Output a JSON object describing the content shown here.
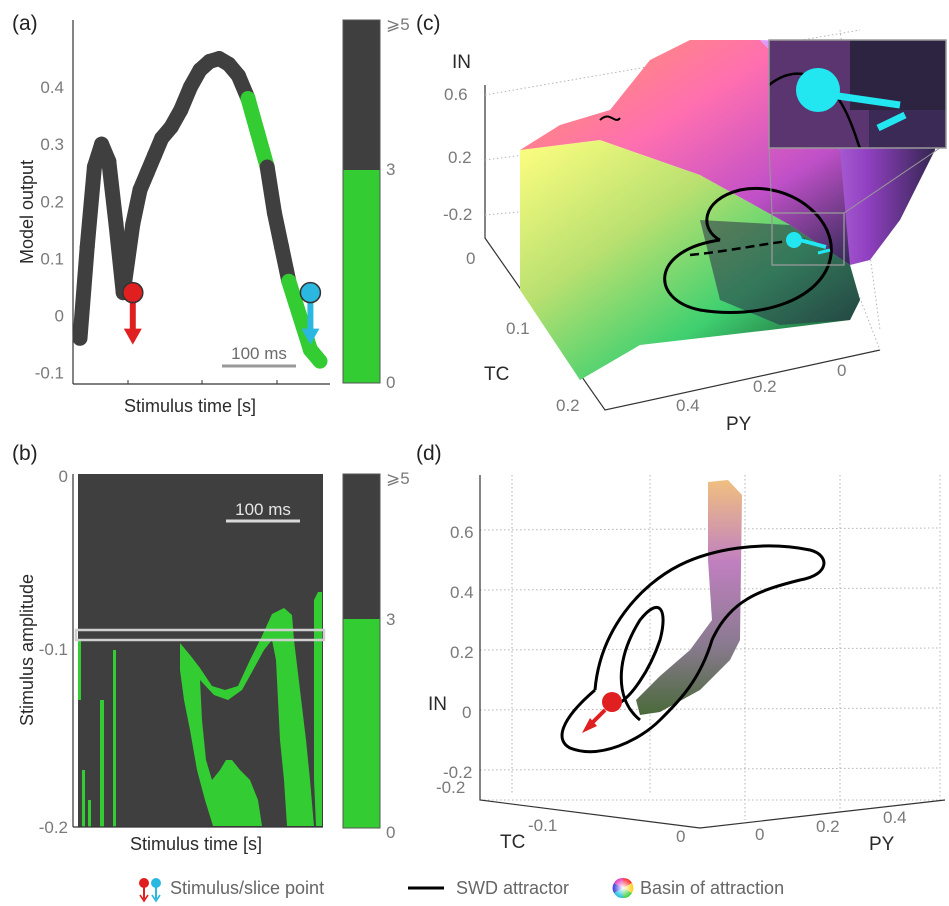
{
  "colors": {
    "dark": "#3f3f3f",
    "green": "#33cc33",
    "red": "#e02020",
    "cyan": "#2ab8e0",
    "black": "#000000"
  },
  "panel_labels": {
    "a": "(a)",
    "b": "(b)",
    "c": "(c)",
    "d": "(d)"
  },
  "colorbar": {
    "ticks": [
      "⩾5",
      "3",
      "0"
    ]
  },
  "scale_bar": {
    "label": "100 ms"
  },
  "legend": {
    "items": [
      {
        "icon": "stimulus-arrows-icon",
        "label": "Stimulus/slice point"
      },
      {
        "icon": "black-line-icon",
        "label": "SWD attractor"
      },
      {
        "icon": "color-wheel-icon",
        "label": "Basin of attraction"
      }
    ]
  },
  "chart_data": [
    {
      "panel": "a",
      "type": "line",
      "xlabel": "Stimulus time [s]",
      "ylabel": "Model output",
      "ylim": [
        -0.12,
        0.5
      ],
      "yticks": [
        "0.4",
        "0.3",
        "0.2",
        "0.1",
        "0",
        "-0.1"
      ],
      "series": [
        {
          "x": [
            0,
            0.03,
            0.06,
            0.09,
            0.12,
            0.15,
            0.18,
            0.22,
            0.25,
            0.28,
            0.31,
            0.34,
            0.38,
            0.42,
            0.46,
            0.5,
            0.54,
            0.58,
            0.62,
            0.66,
            0.7,
            0.74,
            0.78,
            0.81,
            0.84,
            0.87,
            0.9,
            0.93,
            0.96,
            1.0
          ],
          "y": [
            -0.04,
            0.12,
            0.26,
            0.3,
            0.27,
            0.16,
            0.04,
            0.16,
            0.22,
            0.25,
            0.28,
            0.31,
            0.33,
            0.36,
            0.4,
            0.43,
            0.445,
            0.45,
            0.44,
            0.42,
            0.38,
            0.32,
            0.26,
            0.18,
            0.12,
            0.06,
            0.02,
            -0.02,
            -0.06,
            -0.08
          ],
          "color_index": [
            5,
            5,
            5,
            5,
            5,
            5,
            5,
            5,
            5,
            5,
            5,
            5,
            5,
            5,
            5,
            5,
            5,
            5,
            5,
            5,
            3,
            3,
            5,
            5,
            5,
            2,
            2,
            2,
            2,
            2
          ]
        }
      ],
      "markers": [
        {
          "x": 0.22,
          "y": 0.04,
          "color": "red",
          "arrow": "down"
        },
        {
          "x": 0.96,
          "y": 0.04,
          "color": "cyan",
          "arrow": "down"
        }
      ]
    },
    {
      "panel": "b",
      "type": "heatmap",
      "xlabel": "Stimulus time [s]",
      "ylabel": "Stimulus amplitude",
      "yticks": [
        "0",
        "-0.1",
        "-0.2"
      ],
      "ylim": [
        -0.2,
        0
      ],
      "slice_amplitude": -0.087,
      "legend_values": [
        "⩾5",
        "3",
        "0"
      ]
    },
    {
      "panel": "c",
      "type": "scatter",
      "axes3d": {
        "xlabel": "PY",
        "ylabel": "TC",
        "zlabel": "IN",
        "xticks": [
          "0.4",
          "0.2",
          "0"
        ],
        "yticks": [
          "0",
          "0.1",
          "0.2"
        ],
        "zticks": [
          "0.6",
          "0.2",
          "-0.2"
        ]
      }
    },
    {
      "panel": "d",
      "type": "scatter",
      "axes3d": {
        "xlabel": "PY",
        "ylabel": "TC",
        "zlabel": "IN",
        "xticks": [
          "0",
          "0.2",
          "0.4"
        ],
        "yticks": [
          "-0.1",
          "0"
        ],
        "zticks": [
          "0.6",
          "0.4",
          "0.2",
          "0",
          "-0.2"
        ]
      }
    }
  ]
}
